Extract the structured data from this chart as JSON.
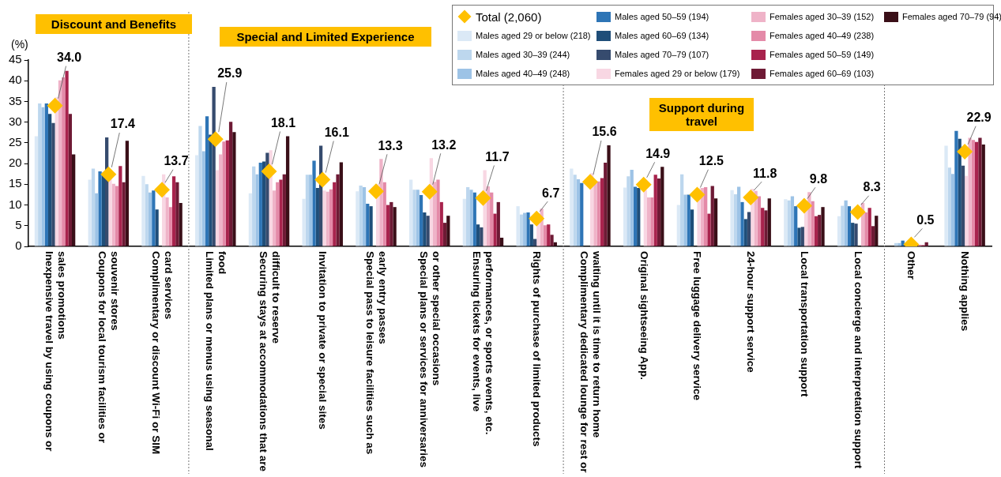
{
  "chart_data": {
    "type": "bar",
    "ylabel": "(%)",
    "annotations": [
      "Discount and Benefits",
      "Special and Limited Experience",
      "Support during travel"
    ],
    "categories": [
      "Inexpensive travel by using coupons or sales promotions",
      "Coupons for local tourism facilities or souvenir stores",
      "Complimentary or discount Wi-Fi or SIM card services",
      "Limited plans or menus using seasonal food",
      "Securing stays at accommodations that are difficult to reserve",
      "Invitation to private or special sites",
      "Special pass to leisure facilities such as early entry passes",
      "Special plans or services for anniversaries or other special occasions",
      "Ensuring tickets for events, live performances, or sports events, etc.",
      "Rights of purchase of limited products",
      "Complimentary dedicated lounge for rest or waiting until it is time to return home",
      "Original sightseeing App.",
      "Free luggage delivery service",
      "24-hour support service",
      "Local transportation support",
      "Local concierge and interpretation support",
      "Other",
      "Nothing applies"
    ],
    "ylim": [
      0,
      45
    ],
    "yticks": [
      0,
      5,
      10,
      15,
      20,
      25,
      30,
      35,
      40,
      45
    ],
    "grid": false,
    "legend": "top right",
    "series": [
      {
        "name": "Males aged 29 or below (218)",
        "color": "#dbe9f6",
        "values": [
          26.6,
          16.1,
          17.0,
          22.0,
          12.8,
          11.5,
          13.3,
          16.1,
          11.5,
          9.7,
          18.8,
          14.2,
          10.0,
          13.6,
          11.4,
          7.3,
          null,
          24.3
        ]
      },
      {
        "name": "Males aged 30–39 (244)",
        "color": "#bdd7ee",
        "values": [
          34.5,
          18.8,
          15.0,
          29.1,
          19.3,
          17.3,
          14.7,
          13.7,
          14.3,
          7.7,
          17.3,
          16.9,
          17.4,
          12.6,
          11.1,
          9.8,
          0.8,
          19.0
        ]
      },
      {
        "name": "Males aged 40–49 (248)",
        "color": "#9dc3e6",
        "values": [
          33.6,
          12.8,
          13.0,
          23.0,
          17.4,
          17.3,
          14.3,
          13.7,
          13.7,
          8.1,
          16.2,
          18.5,
          12.5,
          14.4,
          12.1,
          11.1,
          0.8,
          17.5
        ]
      },
      {
        "name": "Males aged 50–59 (194)",
        "color": "#2e75b6",
        "values": [
          34.5,
          18.1,
          13.5,
          31.4,
          20.2,
          20.7,
          10.3,
          12.4,
          13.0,
          8.2,
          15.3,
          14.4,
          12.5,
          10.7,
          9.7,
          9.7,
          1.4,
          27.9
        ]
      },
      {
        "name": "Males aged 60–69 (134)",
        "color": "#1f4e79",
        "values": [
          32.0,
          17.8,
          8.9,
          27.0,
          20.5,
          14.1,
          9.7,
          8.2,
          5.3,
          5.3,
          null,
          14.1,
          8.9,
          6.6,
          4.5,
          5.7,
          null,
          26.0
        ]
      },
      {
        "name": "Males aged 70–79 (107)",
        "color": "#364b6e",
        "values": [
          29.8,
          26.3,
          null,
          38.5,
          22.6,
          24.3,
          null,
          7.4,
          4.6,
          1.8,
          null,
          null,
          null,
          8.3,
          4.7,
          5.5,
          null,
          19.5
        ]
      },
      {
        "name": "Females aged 29 or below (179)",
        "color": "#f8d7e3",
        "values": [
          36.0,
          16.8,
          17.4,
          18.4,
          23.2,
          13.5,
          15.0,
          21.3,
          18.4,
          8.0,
          17.7,
          13.6,
          14.0,
          13.9,
          11.0,
          null,
          null,
          17.0
        ]
      },
      {
        "name": "Females aged 30–39 (152)",
        "color": "#efb3c8",
        "values": [
          40.1,
          15.1,
          11.8,
          22.2,
          13.5,
          13.2,
          21.1,
          15.6,
          14.5,
          9.1,
          15.7,
          11.8,
          14.1,
          13.4,
          13.1,
          10.5,
          null,
          26.2
        ]
      },
      {
        "name": "Females aged 40–49 (238)",
        "color": "#e48aa8",
        "values": [
          40.8,
          14.6,
          9.5,
          25.3,
          15.5,
          13.8,
          15.5,
          16.1,
          13.0,
          5.1,
          15.7,
          11.8,
          14.3,
          12.1,
          10.9,
          8.2,
          0.4,
          25.7
        ]
      },
      {
        "name": "Females aged 50–59 (149)",
        "color": "#a8234d",
        "values": [
          42.4,
          19.4,
          16.9,
          25.6,
          16.1,
          15.5,
          10.0,
          10.7,
          7.9,
          5.3,
          16.5,
          17.3,
          7.9,
          9.3,
          7.3,
          9.3,
          0.3,
          25.2
        ]
      },
      {
        "name": "Females aged 60–69 (103)",
        "color": "#6e1a35",
        "values": [
          32.0,
          15.5,
          15.5,
          30.1,
          17.4,
          17.4,
          10.7,
          5.7,
          10.7,
          2.8,
          20.2,
          16.4,
          14.6,
          8.7,
          7.6,
          4.9,
          1.0,
          26.2
        ]
      },
      {
        "name": "Females aged 70–79 (94)",
        "color": "#3a0f18",
        "values": [
          22.2,
          25.5,
          10.5,
          27.6,
          26.6,
          20.3,
          9.5,
          7.4,
          2.1,
          1.0,
          24.4,
          19.2,
          11.6,
          11.6,
          9.5,
          7.4,
          null,
          24.6
        ]
      },
      {
        "name": "Total (2,060)",
        "type": "scatter",
        "marker": "diamond",
        "color": "#ffc000",
        "values": [
          34.0,
          17.4,
          13.7,
          25.9,
          18.1,
          16.1,
          13.3,
          13.2,
          11.7,
          6.7,
          15.6,
          14.9,
          12.5,
          11.8,
          9.8,
          8.3,
          0.5,
          22.9
        ],
        "value_labels": [
          "34.0",
          "17.4",
          "13.7",
          "25.9",
          "18.1",
          "16.1",
          "13.3",
          "13.2",
          "11.7",
          "6.7",
          "15.6",
          "14.9",
          "12.5",
          "11.8",
          "9.8",
          "8.3",
          "0.5",
          "22.9"
        ]
      }
    ]
  }
}
